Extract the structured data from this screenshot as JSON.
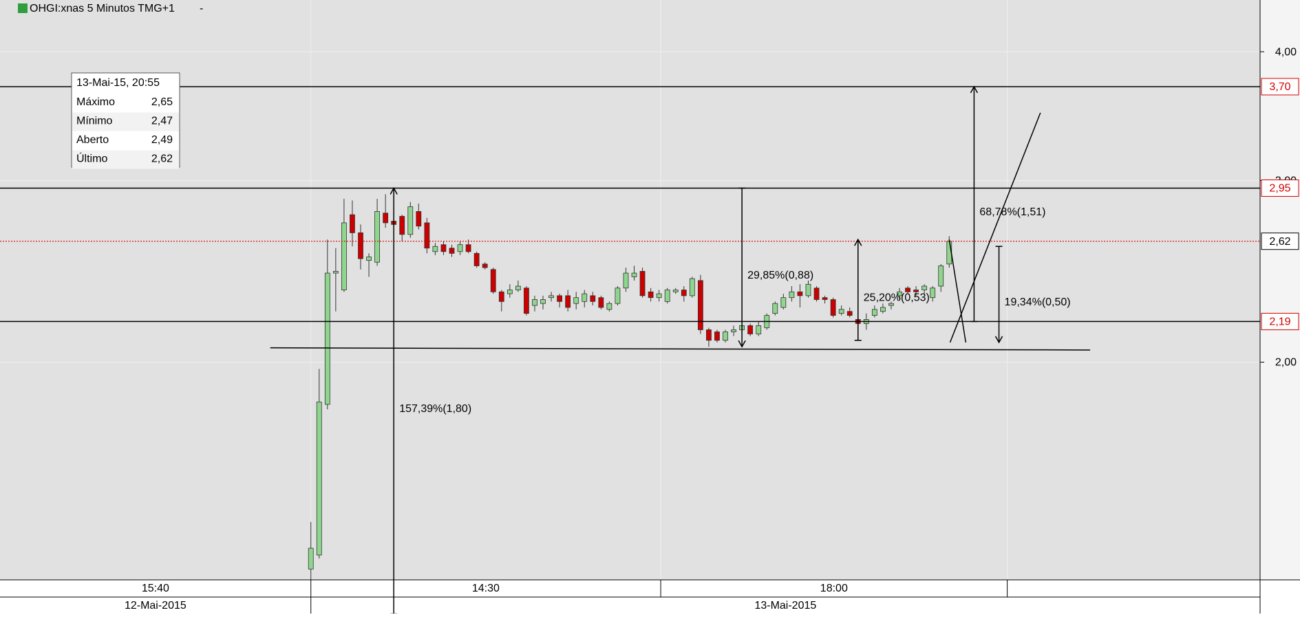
{
  "chart_data": {
    "type": "candlestick",
    "title": "OHGI:xnas 5 Minutos TMG+1",
    "log_scale": true,
    "grid": true,
    "ylim": [
      1.23,
      4.49
    ],
    "yticks": [
      {
        "value": 4.0,
        "label": "4,00"
      },
      {
        "value": 3.0,
        "label": "3,00"
      },
      {
        "value": 2.0,
        "label": "2,00"
      }
    ],
    "xlim": [
      -37.5,
      114.5
    ],
    "time_cells": [
      {
        "label": "15:40",
        "from": -37.5,
        "to": 0
      },
      {
        "label": "14:30",
        "from": 0,
        "to": 42.2
      },
      {
        "label": "18:00",
        "from": 42.2,
        "to": 84
      }
    ],
    "date_cells": [
      {
        "label": "12-Mai-2015",
        "from": -37.5,
        "to": 0
      },
      {
        "label": "13-Mai-2015",
        "from": 0,
        "to": 114.5
      }
    ],
    "up_color": "#8ed68e",
    "down_color": "#cc0000",
    "candles": {
      "open": [
        1.26,
        1.3,
        1.82,
        2.44,
        2.35,
        2.78,
        2.67,
        2.51,
        2.5,
        2.79,
        2.74,
        2.77,
        2.66,
        2.8,
        2.73,
        2.56,
        2.6,
        2.58,
        2.56,
        2.6,
        2.55,
        2.49,
        2.46,
        2.34,
        2.33,
        2.35,
        2.36,
        2.27,
        2.28,
        2.31,
        2.32,
        2.32,
        2.28,
        2.29,
        2.32,
        2.31,
        2.25,
        2.28,
        2.36,
        2.42,
        2.45,
        2.34,
        2.31,
        2.29,
        2.34,
        2.35,
        2.32,
        2.4,
        2.15,
        2.14,
        2.1,
        2.14,
        2.15,
        2.17,
        2.13,
        2.16,
        2.23,
        2.26,
        2.31,
        2.34,
        2.32,
        2.36,
        2.31,
        2.3,
        2.23,
        2.24,
        2.2,
        2.18,
        2.22,
        2.24,
        2.27,
        2.32,
        2.36,
        2.35,
        2.35,
        2.31,
        2.37,
        2.49
      ],
      "high": [
        1.4,
        1.97,
        2.63,
        2.58,
        2.88,
        2.87,
        2.72,
        2.55,
        2.88,
        2.91,
        2.93,
        2.78,
        2.86,
        2.85,
        2.76,
        2.61,
        2.62,
        2.6,
        2.62,
        2.63,
        2.56,
        2.5,
        2.47,
        2.35,
        2.38,
        2.4,
        2.37,
        2.32,
        2.32,
        2.34,
        2.33,
        2.35,
        2.34,
        2.35,
        2.34,
        2.32,
        2.29,
        2.37,
        2.47,
        2.48,
        2.47,
        2.36,
        2.35,
        2.36,
        2.36,
        2.37,
        2.42,
        2.43,
        2.16,
        2.15,
        2.15,
        2.17,
        2.18,
        2.18,
        2.19,
        2.23,
        2.29,
        2.33,
        2.37,
        2.38,
        2.4,
        2.37,
        2.32,
        2.31,
        2.27,
        2.26,
        2.21,
        2.23,
        2.27,
        2.28,
        2.29,
        2.36,
        2.37,
        2.37,
        2.38,
        2.37,
        2.49,
        2.65
      ],
      "low": [
        1.23,
        1.29,
        1.8,
        2.24,
        2.34,
        2.59,
        2.46,
        2.42,
        2.48,
        2.7,
        2.69,
        2.62,
        2.64,
        2.69,
        2.55,
        2.54,
        2.54,
        2.53,
        2.54,
        2.55,
        2.47,
        2.46,
        2.33,
        2.24,
        2.31,
        2.34,
        2.22,
        2.24,
        2.25,
        2.29,
        2.26,
        2.24,
        2.25,
        2.26,
        2.27,
        2.25,
        2.24,
        2.27,
        2.34,
        2.4,
        2.31,
        2.29,
        2.29,
        2.28,
        2.33,
        2.29,
        2.31,
        2.13,
        2.07,
        2.09,
        2.09,
        2.12,
        2.13,
        2.12,
        2.12,
        2.15,
        2.22,
        2.25,
        2.29,
        2.26,
        2.31,
        2.29,
        2.28,
        2.21,
        2.22,
        2.21,
        2.13,
        2.15,
        2.21,
        2.23,
        2.25,
        2.3,
        2.33,
        2.32,
        2.33,
        2.29,
        2.34,
        2.47
      ],
      "close": [
        1.32,
        1.83,
        2.44,
        2.45,
        2.73,
        2.67,
        2.52,
        2.53,
        2.8,
        2.73,
        2.72,
        2.66,
        2.83,
        2.71,
        2.58,
        2.59,
        2.56,
        2.55,
        2.6,
        2.56,
        2.48,
        2.47,
        2.34,
        2.29,
        2.35,
        2.37,
        2.23,
        2.3,
        2.3,
        2.32,
        2.29,
        2.26,
        2.31,
        2.33,
        2.29,
        2.26,
        2.28,
        2.36,
        2.44,
        2.44,
        2.32,
        2.31,
        2.33,
        2.35,
        2.35,
        2.32,
        2.41,
        2.15,
        2.1,
        2.1,
        2.14,
        2.15,
        2.17,
        2.13,
        2.17,
        2.22,
        2.28,
        2.31,
        2.34,
        2.32,
        2.38,
        2.3,
        2.3,
        2.22,
        2.25,
        2.22,
        2.18,
        2.2,
        2.25,
        2.26,
        2.28,
        2.34,
        2.34,
        2.34,
        2.37,
        2.36,
        2.48,
        2.62
      ]
    },
    "hlines": [
      {
        "value": 3.7,
        "label": "3,70",
        "color": "#000000",
        "label_color": "#d00000",
        "style": "solid"
      },
      {
        "value": 2.95,
        "label": "2,95",
        "color": "#000000",
        "label_color": "#d00000",
        "style": "solid"
      },
      {
        "value": 2.62,
        "label": "2,62",
        "color": "#e00000",
        "label_color": "#000000",
        "style": "dotted"
      },
      {
        "value": 2.19,
        "label": "2,19",
        "color": "#000000",
        "label_color": "#d00000",
        "style": "solid"
      }
    ],
    "measures": [
      {
        "x": 10,
        "from": 1.14,
        "to": 2.95,
        "label": "157,39%(1,80)"
      },
      {
        "x": 52,
        "from": 2.95,
        "to": 2.07,
        "label": "29,85%(0,88)"
      },
      {
        "x": 66,
        "from": 2.1,
        "to": 2.63,
        "label": "25,20%(0,53)"
      },
      {
        "x": 80,
        "from": 2.19,
        "to": 3.7,
        "label": "68,78%(1,51)"
      },
      {
        "x": 83,
        "from": 2.59,
        "to": 2.09,
        "label": "19,34%(0,50)"
      }
    ],
    "lines": [
      {
        "x": [
          -4.9,
          94
        ],
        "y": [
          2.065,
          2.055
        ]
      },
      {
        "x": [
          77.1,
          88
        ],
        "y": [
          2.09,
          3.49
        ]
      },
      {
        "x": [
          77,
          79
        ],
        "y": [
          2.63,
          2.09
        ]
      }
    ],
    "tooltip": {
      "title": "13-Mai-15, 20:55",
      "rows": [
        [
          "Máximo",
          "2,65"
        ],
        [
          "Mínimo",
          "2,47"
        ],
        [
          "Aberto",
          "2,49"
        ],
        [
          "Último",
          "2,62"
        ]
      ]
    }
  }
}
